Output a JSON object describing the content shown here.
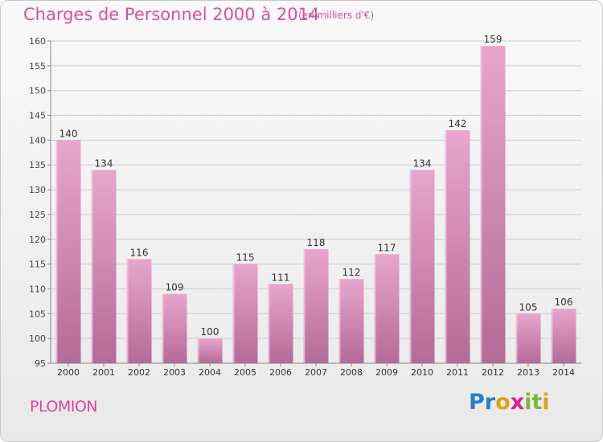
{
  "title": "Charges de Personnel 2000 à 2014",
  "subtitle": "(en milliers d'€)",
  "town": "PLOMION",
  "logo": {
    "text": "Proxiti",
    "letters": [
      {
        "ch": "P",
        "color": "#2a7fc9"
      },
      {
        "ch": "r",
        "color": "#2a7fc9"
      },
      {
        "ch": "o",
        "color": "#e0a21c"
      },
      {
        "ch": "x",
        "color": "#d9218b"
      },
      {
        "ch": "i",
        "color": "#7bb63a"
      },
      {
        "ch": "t",
        "color": "#7bb63a"
      },
      {
        "ch": "i",
        "color": "#e0a21c"
      }
    ]
  },
  "colors": {
    "accent": "#d94f9c",
    "bar_top": "#e8a6cc",
    "bar_bottom": "#b56a98",
    "axis": "#888888",
    "grid": "#cccccc"
  },
  "chart_data": {
    "type": "bar",
    "title": "Charges de Personnel 2000 à 2014",
    "subtitle": "(en milliers d'€)",
    "xlabel": "",
    "ylabel": "",
    "categories": [
      "2000",
      "2001",
      "2002",
      "2003",
      "2004",
      "2005",
      "2006",
      "2007",
      "2008",
      "2009",
      "2010",
      "2011",
      "2012",
      "2013",
      "2014"
    ],
    "values": [
      140,
      134,
      116,
      109,
      100,
      115,
      111,
      118,
      112,
      117,
      134,
      142,
      159,
      105,
      106
    ],
    "ylim": [
      95,
      160
    ],
    "yticks": [
      95,
      100,
      105,
      110,
      115,
      120,
      125,
      130,
      135,
      140,
      145,
      150,
      155,
      160
    ],
    "grid": true,
    "legend": "none",
    "data_labels": true
  }
}
